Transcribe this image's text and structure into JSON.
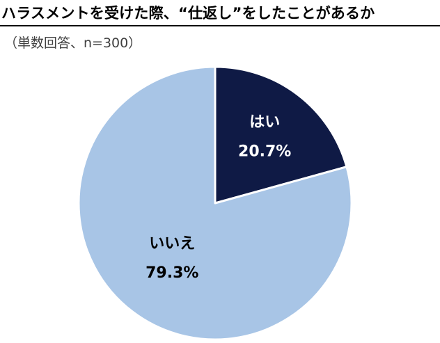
{
  "chart_data": {
    "type": "pie",
    "title": "ハラスメントを受けた際、“仕返し”をしたことがあるか",
    "subtitle": "（単数回答、n=300）",
    "slices": [
      {
        "label": "はい",
        "value": 20.7,
        "value_label": "20.7%",
        "color": "#0f1a45",
        "text_color": "#ffffff"
      },
      {
        "label": "いいえ",
        "value": 79.3,
        "value_label": "79.3%",
        "color": "#a8c5e6",
        "text_color": "#000000"
      }
    ],
    "start_angle_deg": 0,
    "direction": "clockwise",
    "legend": "none"
  }
}
